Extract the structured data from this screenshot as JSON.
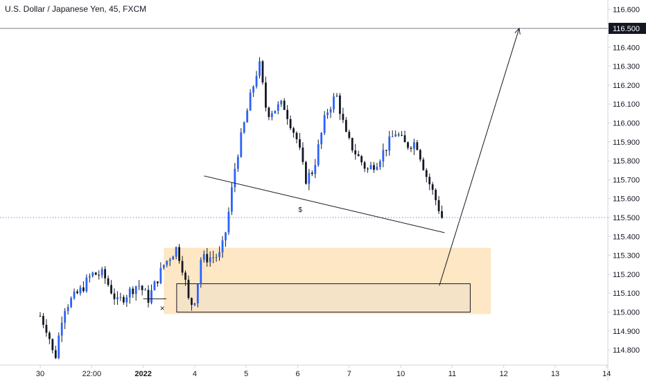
{
  "header": {
    "title": "U.S. Dollar / Japanese Yen, 45, FXCM"
  },
  "colors": {
    "bull": "#2962ff",
    "bear": "#131722",
    "zone_fill": "#fde7c4",
    "box_fill": "#f5e3c8",
    "line": "#131722",
    "axis_text": "#131722",
    "badge_bg": "#131722",
    "dotted": "#2962ff"
  },
  "chart_data": {
    "type": "candlestick",
    "symbol": "U.S. Dollar / Japanese Yen",
    "interval": "45",
    "source": "FXCM",
    "ylim": [
      114.72,
      116.65
    ],
    "y_ticks": [
      "114.800",
      "114.900",
      "115.000",
      "115.100",
      "115.200",
      "115.300",
      "115.400",
      "115.500",
      "115.600",
      "115.700",
      "115.800",
      "115.900",
      "116.000",
      "116.100",
      "116.200",
      "116.300",
      "116.400",
      "116.500",
      "116.600"
    ],
    "x_ticks": [
      {
        "label": "30",
        "day": 0.0
      },
      {
        "label": "22:00",
        "day": 1.0
      },
      {
        "label": "2022",
        "day": 2.0
      },
      {
        "label": "4",
        "day": 3.0
      },
      {
        "label": "5",
        "day": 4.0
      },
      {
        "label": "6",
        "day": 5.0
      },
      {
        "label": "7",
        "day": 6.0
      },
      {
        "label": "10",
        "day": 7.0
      },
      {
        "label": "11",
        "day": 8.0
      },
      {
        "label": "12",
        "day": 9.0
      },
      {
        "label": "13",
        "day": 10.0
      },
      {
        "label": "14",
        "day": 11.0
      }
    ],
    "target_level": "116.500",
    "close_level": 115.5,
    "anchors": [
      [
        0.0,
        114.98
      ],
      [
        0.15,
        114.9
      ],
      [
        0.28,
        114.74
      ],
      [
        0.45,
        115.02
      ],
      [
        0.8,
        115.12
      ],
      [
        1.0,
        115.2
      ],
      [
        1.22,
        115.2
      ],
      [
        1.5,
        115.05
      ],
      [
        1.9,
        115.15
      ],
      [
        2.1,
        115.07
      ],
      [
        2.4,
        115.25
      ],
      [
        2.65,
        115.34
      ],
      [
        2.78,
        115.22
      ],
      [
        2.9,
        115.03
      ],
      [
        3.02,
        115.08
      ],
      [
        3.12,
        115.28
      ],
      [
        3.5,
        115.3
      ],
      [
        3.62,
        115.45
      ],
      [
        3.8,
        115.8
      ],
      [
        4.05,
        116.1
      ],
      [
        4.25,
        116.32
      ],
      [
        4.4,
        116.05
      ],
      [
        4.72,
        116.1
      ],
      [
        5.0,
        115.9
      ],
      [
        5.15,
        115.7
      ],
      [
        5.3,
        115.75
      ],
      [
        5.55,
        116.05
      ],
      [
        5.75,
        116.15
      ],
      [
        5.95,
        115.92
      ],
      [
        6.15,
        115.83
      ],
      [
        6.35,
        115.75
      ],
      [
        6.55,
        115.8
      ],
      [
        6.9,
        115.95
      ],
      [
        7.1,
        115.88
      ],
      [
        7.3,
        115.9
      ],
      [
        7.5,
        115.72
      ],
      [
        7.7,
        115.58
      ],
      [
        7.8,
        115.5
      ]
    ],
    "annotations": {
      "demand_zone": {
        "day_start": 2.4,
        "day_end": 8.75,
        "price_top": 115.34,
        "price_bottom": 114.99,
        "label": ""
      },
      "entry_box": {
        "day_start": 2.65,
        "day_end": 8.35,
        "price_top": 115.15,
        "price_bottom": 115.0
      },
      "trendline": {
        "from": {
          "day": 3.18,
          "price": 115.72
        },
        "to": {
          "day": 7.85,
          "price": 115.42
        }
      },
      "dollar_marker": {
        "day": 5.05,
        "price": 115.53,
        "text": "$"
      },
      "x_marker": {
        "day": 2.37,
        "price": 115.02,
        "text": "×"
      },
      "arrow": {
        "from": {
          "day": 7.75,
          "price": 115.14
        },
        "to": {
          "day": 9.3,
          "price": 116.5
        }
      }
    }
  }
}
